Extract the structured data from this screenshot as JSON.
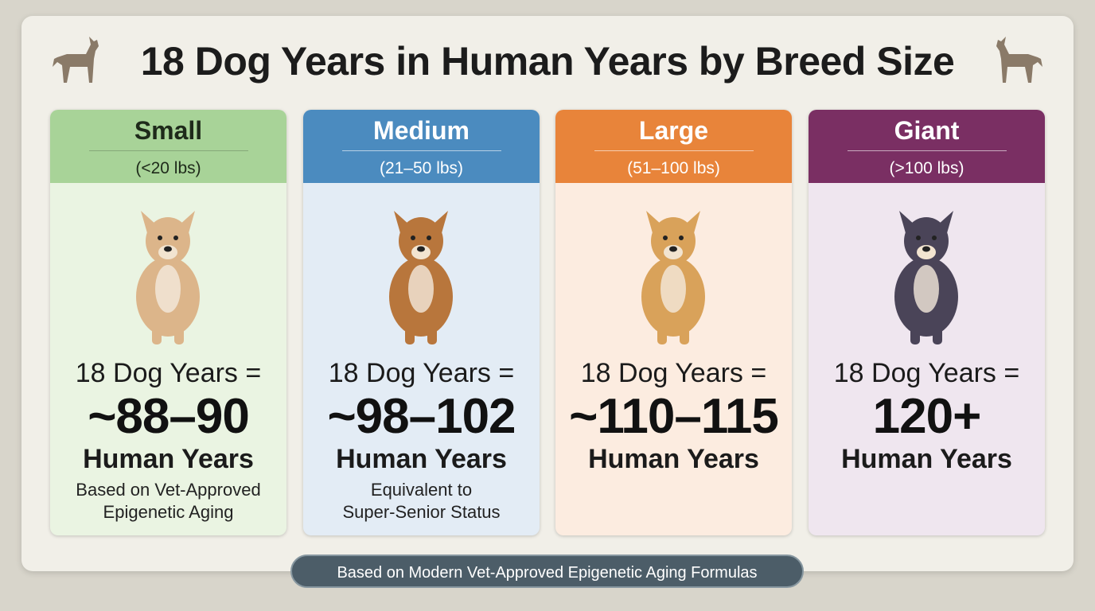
{
  "header": {
    "title": "18 Dog Years in Human Years by Breed Size"
  },
  "cards": [
    {
      "name": "Small",
      "weight": "(<20 lbs)",
      "equation": "18 Dog Years =",
      "value": "~88–90",
      "unit": "Human Years",
      "note": [
        "Based on Vet-Approved",
        "Epigenetic Aging"
      ]
    },
    {
      "name": "Medium",
      "weight": "(21–50 lbs)",
      "equation": "18 Dog Years =",
      "value": "~98–102",
      "unit": "Human Years",
      "note": [
        "Equivalent to",
        "Super-Senior Status"
      ]
    },
    {
      "name": "Large",
      "weight": "(51–100 lbs)",
      "equation": "18 Dog Years =",
      "value": "~110–115",
      "unit": "Human Years",
      "note": []
    },
    {
      "name": "Giant",
      "weight": "(>100 lbs)",
      "equation": "18 Dog Years =",
      "value": "120+",
      "unit": "Human Years",
      "note": []
    }
  ],
  "footer": {
    "text": "Based on Modern Vet-Approved Epigenetic Aging Formulas"
  }
}
